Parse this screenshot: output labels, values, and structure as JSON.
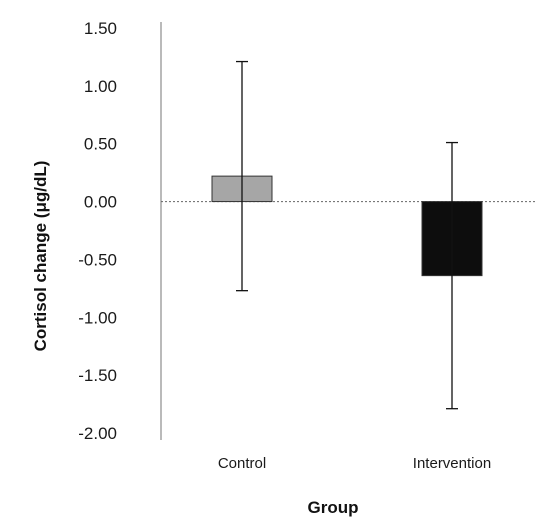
{
  "chart_data": {
    "type": "bar",
    "title": "",
    "xlabel": "Group",
    "ylabel": "Cortisol change (μg/dL)",
    "categories": [
      "Control",
      "Intervention"
    ],
    "values": [
      0.22,
      -0.64
    ],
    "error_upper": [
      1.21,
      0.51
    ],
    "error_lower": [
      -0.77,
      -1.79
    ],
    "ylim": [
      -2.0,
      1.5
    ],
    "yticks": [
      1.5,
      1.0,
      0.5,
      0.0,
      -0.5,
      -1.0,
      -1.5,
      -2.0
    ],
    "ytick_labels": [
      "1.50",
      "1.00",
      "0.50",
      "0.00",
      "-0.50",
      "-1.00",
      "-1.50",
      "-2.00"
    ],
    "bar_colors": [
      "#a6a6a6",
      "#0d0d0d"
    ],
    "grid": false,
    "zero_line": "dotted"
  }
}
